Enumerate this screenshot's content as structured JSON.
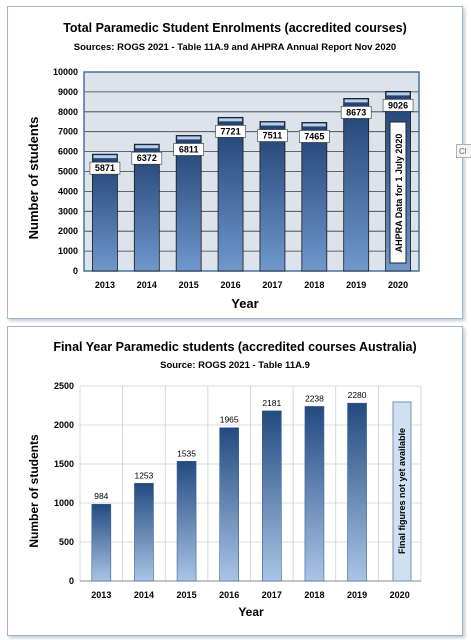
{
  "chart_data": [
    {
      "type": "bar",
      "title": "Total Paramedic Student Enrolments (accredited courses)",
      "subtitle": "Sources: ROGS 2021 - Table 11A.9 and AHPRA Annual Report Nov 2020",
      "xlabel": "Year",
      "ylabel": "Number of students",
      "categories": [
        "2013",
        "2014",
        "2015",
        "2016",
        "2017",
        "2018",
        "2019",
        "2020"
      ],
      "values": [
        5871,
        6372,
        6811,
        7721,
        7511,
        7465,
        8673,
        9026
      ],
      "value_labels": [
        "5871",
        "6372",
        "6811",
        "7721",
        "7511",
        "7465",
        "8673",
        "9026"
      ],
      "ylim": [
        0,
        10000
      ],
      "yticks": [
        "0",
        "1000",
        "2000",
        "3000",
        "4000",
        "5000",
        "6000",
        "7000",
        "8000",
        "9000",
        "10000"
      ],
      "grid": true,
      "annotation": "AHPRA Data  for 1 July 2020",
      "colors": {
        "bar_dark": "#1f3f70",
        "bar_light": "#6f98cd",
        "plot_bg": "#dde3eb",
        "frame": "#4a6fa0"
      }
    },
    {
      "type": "bar",
      "title": "Final Year Paramedic students (accredited courses Australia)",
      "subtitle": "Source: ROGS 2021 - Table 11A.9",
      "xlabel": "Year",
      "ylabel": "Number of students",
      "categories": [
        "2013",
        "2014",
        "2015",
        "2016",
        "2017",
        "2018",
        "2019",
        "2020"
      ],
      "values": [
        984,
        1253,
        1535,
        1965,
        2181,
        2238,
        2280,
        null
      ],
      "value_labels": [
        "984",
        "1253",
        "1535",
        "1965",
        "2181",
        "2238",
        "2280",
        ""
      ],
      "ylim": [
        0,
        2500
      ],
      "yticks": [
        "0",
        "500",
        "1000",
        "1500",
        "2000",
        "2500"
      ],
      "grid": true,
      "annotation": "Final figures not yet available",
      "colors": {
        "bar_dark": "#234a80",
        "bar_light": "#a9c4e6",
        "placeholder": "#cfe0f2",
        "grid": "#d0d0d0"
      }
    }
  ],
  "ui": {
    "edge_tab_text": "Cl"
  }
}
